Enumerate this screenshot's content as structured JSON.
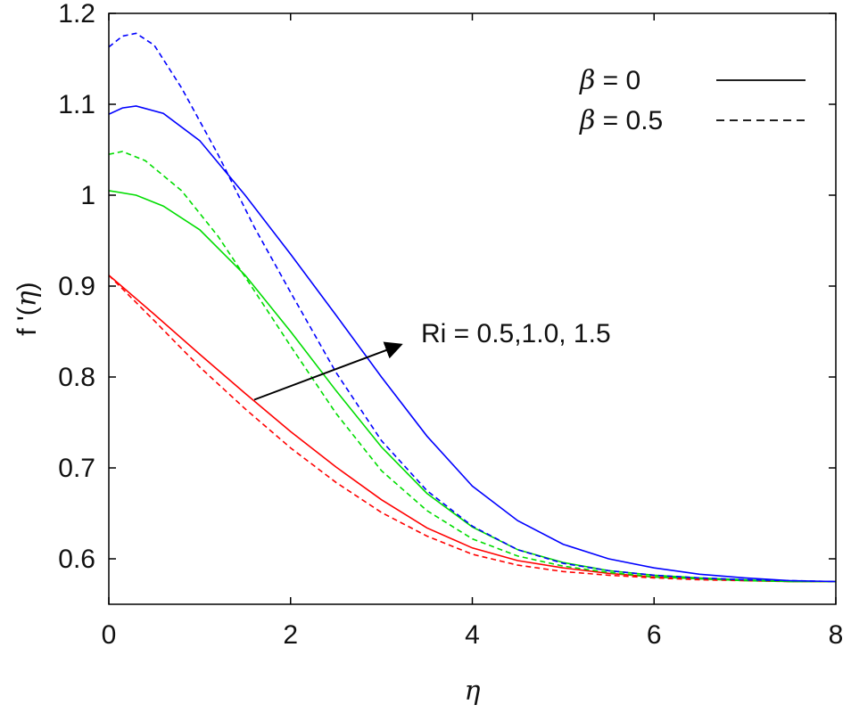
{
  "chart_data": {
    "type": "line",
    "title": "",
    "xlabel": "η",
    "ylabel_prefix": "f '(",
    "ylabel_var": "η",
    "ylabel_suffix": ")",
    "xlim": [
      0,
      8
    ],
    "ylim": [
      0.55,
      1.2
    ],
    "xticks": [
      0,
      2,
      4,
      6,
      8
    ],
    "yticks": [
      0.6,
      0.7,
      0.8,
      0.9,
      1,
      1.1,
      1.2
    ],
    "xtick_labels": [
      "0",
      "2",
      "4",
      "6",
      "8"
    ],
    "ytick_labels": [
      "0.6",
      "0.7",
      "0.8",
      "0.9",
      "1",
      "1.1",
      "1.2"
    ],
    "grid": false,
    "legend_position": "top-right",
    "legend": [
      {
        "symbol": "β",
        "text": " = 0",
        "style": "solid"
      },
      {
        "symbol": "β",
        "text": " = 0.5",
        "style": "dashed"
      }
    ],
    "annotation": {
      "text": "Ri = 0.5,1.0, 1.5",
      "arrow_from": [
        1.6,
        0.775
      ],
      "arrow_to": [
        3.2,
        0.835
      ]
    },
    "colors": {
      "red": "#ff0000",
      "green": "#00dd00",
      "blue": "#0000ff",
      "axis": "#000000"
    },
    "series": [
      {
        "color": "red",
        "style": "solid",
        "points": [
          [
            0,
            0.912
          ],
          [
            0.5,
            0.869
          ],
          [
            1,
            0.825
          ],
          [
            1.5,
            0.782
          ],
          [
            2,
            0.74
          ],
          [
            2.5,
            0.701
          ],
          [
            3,
            0.665
          ],
          [
            3.5,
            0.634
          ],
          [
            4,
            0.612
          ],
          [
            4.5,
            0.598
          ],
          [
            5,
            0.59
          ],
          [
            5.5,
            0.584
          ],
          [
            6,
            0.58
          ],
          [
            6.5,
            0.578
          ],
          [
            7,
            0.576
          ],
          [
            7.5,
            0.575
          ],
          [
            8,
            0.575
          ]
        ]
      },
      {
        "color": "red",
        "style": "dashed",
        "points": [
          [
            0,
            0.912
          ],
          [
            0.5,
            0.862
          ],
          [
            1,
            0.811
          ],
          [
            1.5,
            0.765
          ],
          [
            2,
            0.722
          ],
          [
            2.5,
            0.684
          ],
          [
            3,
            0.651
          ],
          [
            3.5,
            0.625
          ],
          [
            4,
            0.605
          ],
          [
            4.5,
            0.593
          ],
          [
            5,
            0.586
          ],
          [
            5.5,
            0.582
          ],
          [
            6,
            0.579
          ],
          [
            6.5,
            0.577
          ],
          [
            7,
            0.576
          ],
          [
            7.5,
            0.575
          ],
          [
            8,
            0.575
          ]
        ]
      },
      {
        "color": "green",
        "style": "solid",
        "points": [
          [
            0,
            1.005
          ],
          [
            0.3,
            1.0
          ],
          [
            0.6,
            0.988
          ],
          [
            1,
            0.962
          ],
          [
            1.5,
            0.912
          ],
          [
            2,
            0.85
          ],
          [
            2.5,
            0.785
          ],
          [
            3,
            0.723
          ],
          [
            3.5,
            0.672
          ],
          [
            4,
            0.635
          ],
          [
            4.5,
            0.61
          ],
          [
            5,
            0.596
          ],
          [
            5.5,
            0.587
          ],
          [
            6,
            0.582
          ],
          [
            6.5,
            0.579
          ],
          [
            7,
            0.577
          ],
          [
            7.5,
            0.575
          ],
          [
            8,
            0.575
          ]
        ]
      },
      {
        "color": "green",
        "style": "dashed",
        "points": [
          [
            0,
            1.045
          ],
          [
            0.15,
            1.048
          ],
          [
            0.4,
            1.038
          ],
          [
            0.8,
            1.005
          ],
          [
            1.2,
            0.955
          ],
          [
            1.6,
            0.895
          ],
          [
            2,
            0.834
          ],
          [
            2.5,
            0.76
          ],
          [
            3,
            0.697
          ],
          [
            3.5,
            0.653
          ],
          [
            4,
            0.622
          ],
          [
            4.5,
            0.603
          ],
          [
            5,
            0.592
          ],
          [
            5.5,
            0.585
          ],
          [
            6,
            0.58
          ],
          [
            6.5,
            0.578
          ],
          [
            7,
            0.576
          ],
          [
            7.5,
            0.575
          ],
          [
            8,
            0.575
          ]
        ]
      },
      {
        "color": "blue",
        "style": "solid",
        "points": [
          [
            0,
            1.089
          ],
          [
            0.15,
            1.096
          ],
          [
            0.3,
            1.098
          ],
          [
            0.6,
            1.09
          ],
          [
            1,
            1.06
          ],
          [
            1.5,
            1.0
          ],
          [
            2,
            0.935
          ],
          [
            2.5,
            0.868
          ],
          [
            3,
            0.8
          ],
          [
            3.5,
            0.735
          ],
          [
            4,
            0.68
          ],
          [
            4.5,
            0.642
          ],
          [
            5,
            0.616
          ],
          [
            5.5,
            0.6
          ],
          [
            6,
            0.59
          ],
          [
            6.5,
            0.583
          ],
          [
            7,
            0.579
          ],
          [
            7.5,
            0.576
          ],
          [
            8,
            0.575
          ]
        ]
      },
      {
        "color": "blue",
        "style": "dashed",
        "points": [
          [
            0,
            1.163
          ],
          [
            0.15,
            1.175
          ],
          [
            0.3,
            1.178
          ],
          [
            0.5,
            1.165
          ],
          [
            0.8,
            1.118
          ],
          [
            1.2,
            1.045
          ],
          [
            1.6,
            0.965
          ],
          [
            2,
            0.893
          ],
          [
            2.5,
            0.805
          ],
          [
            3,
            0.73
          ],
          [
            3.5,
            0.675
          ],
          [
            4,
            0.636
          ],
          [
            4.5,
            0.61
          ],
          [
            5,
            0.595
          ],
          [
            5.5,
            0.587
          ],
          [
            6,
            0.582
          ],
          [
            6.5,
            0.579
          ],
          [
            7,
            0.577
          ],
          [
            7.5,
            0.576
          ],
          [
            8,
            0.575
          ]
        ]
      }
    ]
  }
}
